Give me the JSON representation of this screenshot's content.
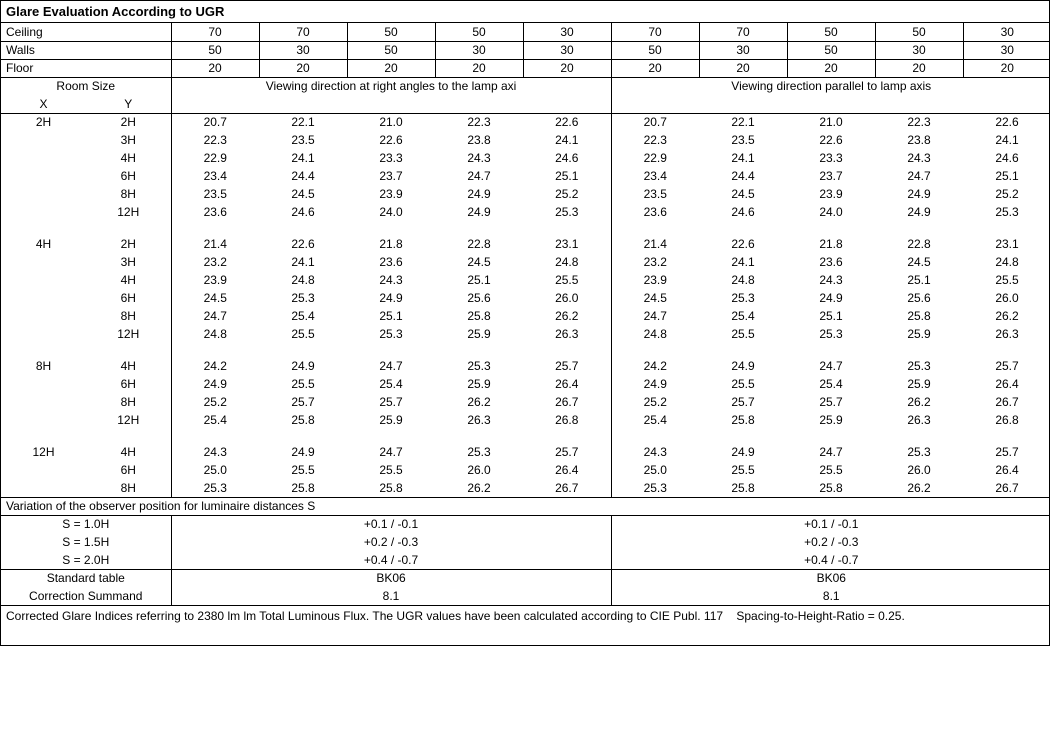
{
  "title": "Glare Evaluation According to UGR",
  "header_rows": [
    {
      "label": "Ceiling",
      "a": [
        "70",
        "70",
        "50",
        "50",
        "30"
      ],
      "b": [
        "70",
        "70",
        "50",
        "50",
        "30"
      ]
    },
    {
      "label": "Walls",
      "a": [
        "50",
        "30",
        "50",
        "30",
        "30"
      ],
      "b": [
        "50",
        "30",
        "50",
        "30",
        "30"
      ]
    },
    {
      "label": "Floor",
      "a": [
        "20",
        "20",
        "20",
        "20",
        "20"
      ],
      "b": [
        "20",
        "20",
        "20",
        "20",
        "20"
      ]
    }
  ],
  "room_size_label": "Room Size",
  "x_label": "X",
  "y_label": "Y",
  "dir_a": "Viewing direction at right angles to the lamp axi",
  "dir_b": "Viewing direction parallel to lamp axis",
  "groups": [
    {
      "x": "2H",
      "rows": [
        {
          "y": "2H",
          "a": [
            "20.7",
            "22.1",
            "21.0",
            "22.3",
            "22.6"
          ],
          "b": [
            "20.7",
            "22.1",
            "21.0",
            "22.3",
            "22.6"
          ]
        },
        {
          "y": "3H",
          "a": [
            "22.3",
            "23.5",
            "22.6",
            "23.8",
            "24.1"
          ],
          "b": [
            "22.3",
            "23.5",
            "22.6",
            "23.8",
            "24.1"
          ]
        },
        {
          "y": "4H",
          "a": [
            "22.9",
            "24.1",
            "23.3",
            "24.3",
            "24.6"
          ],
          "b": [
            "22.9",
            "24.1",
            "23.3",
            "24.3",
            "24.6"
          ]
        },
        {
          "y": "6H",
          "a": [
            "23.4",
            "24.4",
            "23.7",
            "24.7",
            "25.1"
          ],
          "b": [
            "23.4",
            "24.4",
            "23.7",
            "24.7",
            "25.1"
          ]
        },
        {
          "y": "8H",
          "a": [
            "23.5",
            "24.5",
            "23.9",
            "24.9",
            "25.2"
          ],
          "b": [
            "23.5",
            "24.5",
            "23.9",
            "24.9",
            "25.2"
          ]
        },
        {
          "y": "12H",
          "a": [
            "23.6",
            "24.6",
            "24.0",
            "24.9",
            "25.3"
          ],
          "b": [
            "23.6",
            "24.6",
            "24.0",
            "24.9",
            "25.3"
          ]
        }
      ]
    },
    {
      "x": "4H",
      "rows": [
        {
          "y": "2H",
          "a": [
            "21.4",
            "22.6",
            "21.8",
            "22.8",
            "23.1"
          ],
          "b": [
            "21.4",
            "22.6",
            "21.8",
            "22.8",
            "23.1"
          ]
        },
        {
          "y": "3H",
          "a": [
            "23.2",
            "24.1",
            "23.6",
            "24.5",
            "24.8"
          ],
          "b": [
            "23.2",
            "24.1",
            "23.6",
            "24.5",
            "24.8"
          ]
        },
        {
          "y": "4H",
          "a": [
            "23.9",
            "24.8",
            "24.3",
            "25.1",
            "25.5"
          ],
          "b": [
            "23.9",
            "24.8",
            "24.3",
            "25.1",
            "25.5"
          ]
        },
        {
          "y": "6H",
          "a": [
            "24.5",
            "25.3",
            "24.9",
            "25.6",
            "26.0"
          ],
          "b": [
            "24.5",
            "25.3",
            "24.9",
            "25.6",
            "26.0"
          ]
        },
        {
          "y": "8H",
          "a": [
            "24.7",
            "25.4",
            "25.1",
            "25.8",
            "26.2"
          ],
          "b": [
            "24.7",
            "25.4",
            "25.1",
            "25.8",
            "26.2"
          ]
        },
        {
          "y": "12H",
          "a": [
            "24.8",
            "25.5",
            "25.3",
            "25.9",
            "26.3"
          ],
          "b": [
            "24.8",
            "25.5",
            "25.3",
            "25.9",
            "26.3"
          ]
        }
      ]
    },
    {
      "x": "8H",
      "rows": [
        {
          "y": "4H",
          "a": [
            "24.2",
            "24.9",
            "24.7",
            "25.3",
            "25.7"
          ],
          "b": [
            "24.2",
            "24.9",
            "24.7",
            "25.3",
            "25.7"
          ]
        },
        {
          "y": "6H",
          "a": [
            "24.9",
            "25.5",
            "25.4",
            "25.9",
            "26.4"
          ],
          "b": [
            "24.9",
            "25.5",
            "25.4",
            "25.9",
            "26.4"
          ]
        },
        {
          "y": "8H",
          "a": [
            "25.2",
            "25.7",
            "25.7",
            "26.2",
            "26.7"
          ],
          "b": [
            "25.2",
            "25.7",
            "25.7",
            "26.2",
            "26.7"
          ]
        },
        {
          "y": "12H",
          "a": [
            "25.4",
            "25.8",
            "25.9",
            "26.3",
            "26.8"
          ],
          "b": [
            "25.4",
            "25.8",
            "25.9",
            "26.3",
            "26.8"
          ]
        }
      ]
    },
    {
      "x": "12H",
      "rows": [
        {
          "y": "4H",
          "a": [
            "24.3",
            "24.9",
            "24.7",
            "25.3",
            "25.7"
          ],
          "b": [
            "24.3",
            "24.9",
            "24.7",
            "25.3",
            "25.7"
          ]
        },
        {
          "y": "6H",
          "a": [
            "25.0",
            "25.5",
            "25.5",
            "26.0",
            "26.4"
          ],
          "b": [
            "25.0",
            "25.5",
            "25.5",
            "26.0",
            "26.4"
          ]
        },
        {
          "y": "8H",
          "a": [
            "25.3",
            "25.8",
            "25.8",
            "26.2",
            "26.7"
          ],
          "b": [
            "25.3",
            "25.8",
            "25.8",
            "26.2",
            "26.7"
          ]
        }
      ]
    }
  ],
  "variation_title": "Variation of the observer position for luminaire distances S",
  "variation_rows": [
    {
      "label": "S = 1.0H",
      "a": "+0.1 / -0.1",
      "b": "+0.1 / -0.1"
    },
    {
      "label": "S = 1.5H",
      "a": "+0.2 / -0.3",
      "b": "+0.2 / -0.3"
    },
    {
      "label": "S = 2.0H",
      "a": "+0.4 / -0.7",
      "b": "+0.4 / -0.7"
    }
  ],
  "summary_rows": [
    {
      "label": "Standard table",
      "a": "BK06",
      "b": "BK06"
    },
    {
      "label": "Correction Summand",
      "a": "8.1",
      "b": "8.1"
    }
  ],
  "footnote": "Corrected Glare Indices referring to 2380 lm lm Total Luminous Flux. The UGR values have been calculated according to CIE Publ. 117    Spacing-to-Height-Ratio = 0.25."
}
